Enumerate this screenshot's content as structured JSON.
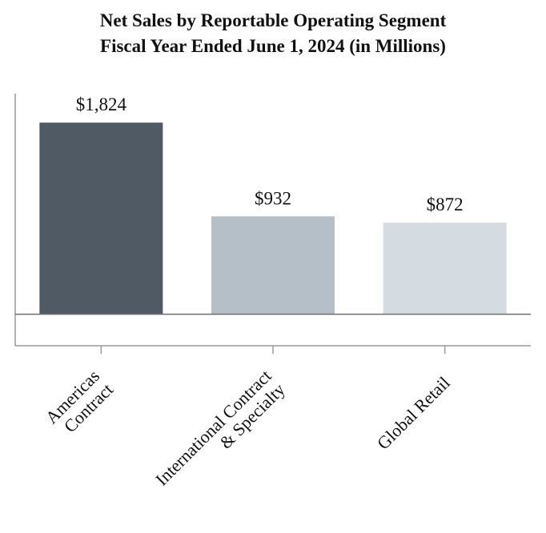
{
  "chart_data": {
    "type": "bar",
    "title": "Net Sales by Reportable Operating Segment",
    "subtitle": "Fiscal Year Ended June 1, 2024 (in Millions)",
    "categories": [
      [
        "Americas",
        "Contract"
      ],
      [
        "International Contract",
        "& Specialty"
      ],
      [
        "Global Retail"
      ]
    ],
    "values": [
      1824,
      932,
      872
    ],
    "value_labels": [
      "$1,824",
      "$932",
      "$872"
    ],
    "colors": [
      "#505A64",
      "#B5BFC8",
      "#D4DCE2"
    ],
    "ylim": [
      -300,
      2100
    ],
    "grid": false,
    "legend": "none"
  }
}
